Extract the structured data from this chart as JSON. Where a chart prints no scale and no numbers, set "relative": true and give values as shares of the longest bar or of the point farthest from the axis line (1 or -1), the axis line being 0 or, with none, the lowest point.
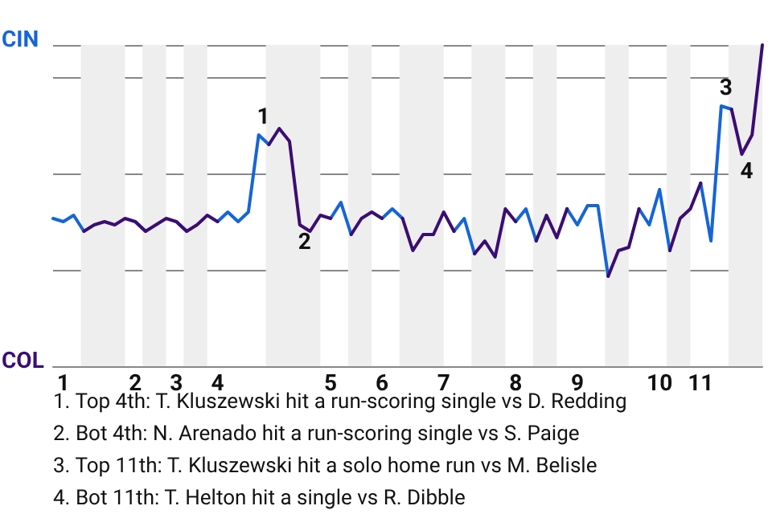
{
  "chart_data": {
    "type": "line",
    "relative": true,
    "categories": [
      null,
      "1",
      null,
      null,
      null,
      null,
      null,
      null,
      "2",
      null,
      null,
      null,
      "3",
      null,
      null,
      null,
      "4",
      null,
      null,
      null,
      null,
      null,
      null,
      null,
      null,
      null,
      null,
      "5",
      null,
      null,
      null,
      null,
      "6",
      null,
      null,
      null,
      null,
      null,
      "7",
      null,
      null,
      null,
      null,
      null,
      null,
      "8",
      null,
      null,
      null,
      null,
      null,
      "9",
      null,
      null,
      null,
      null,
      null,
      null,
      null,
      "10",
      null,
      null,
      null,
      "11",
      null,
      null,
      null,
      null,
      null,
      null
    ],
    "series": [
      {
        "name": "CIN",
        "color": "#1565d8",
        "values": [
          0.46,
          0.45,
          0.47,
          0.42,
          null,
          null,
          null,
          null,
          0.45,
          0.42,
          null,
          null,
          0.45,
          0.42,
          null,
          null,
          0.45,
          0.48,
          0.45,
          0.48,
          0.72,
          0.69,
          null,
          null,
          null,
          null,
          null,
          0.46,
          0.51,
          0.41,
          null,
          null,
          0.46,
          0.49,
          0.46,
          null,
          null,
          null,
          null,
          0.42,
          0.46,
          0.35,
          null,
          null,
          null,
          0.45,
          0.49,
          0.39,
          null,
          null,
          0.49,
          0.44,
          0.5,
          0.5,
          0.28,
          null,
          null,
          0.49,
          0.44,
          0.55,
          0.36,
          null,
          null,
          0.57,
          0.39,
          0.81,
          0.8,
          null,
          null,
          null
        ]
      },
      {
        "name": "COL",
        "color": "#3b0d73",
        "values": [
          null,
          null,
          null,
          0.42,
          0.44,
          0.45,
          0.44,
          0.46,
          0.45,
          0.42,
          0.44,
          0.46,
          0.45,
          0.42,
          0.44,
          0.47,
          0.45,
          null,
          null,
          null,
          null,
          0.69,
          0.74,
          0.7,
          0.44,
          0.42,
          0.47,
          0.46,
          null,
          0.41,
          0.46,
          0.48,
          0.46,
          null,
          0.46,
          0.36,
          0.41,
          0.41,
          0.48,
          0.42,
          null,
          0.35,
          0.39,
          0.34,
          0.49,
          0.45,
          null,
          0.39,
          0.47,
          0.4,
          0.49,
          null,
          null,
          null,
          0.28,
          0.36,
          0.37,
          0.49,
          null,
          null,
          0.36,
          0.46,
          0.49,
          0.57,
          null,
          null,
          0.8,
          0.66,
          0.72,
          1
        ]
      }
    ],
    "grid": "y",
    "marker": "none",
    "line_style": "solid",
    "annotations": [
      {
        "text": "1",
        "y": 0.72
      },
      {
        "text": "2",
        "y": 0.44
      },
      {
        "text": "3",
        "y": 0.81
      },
      {
        "text": "4",
        "y": 0.66
      },
      "1. Top 4th: T. Kluszewski hit a run-scoring single vs D. Redding",
      "2. Bot 4th: N. Arenado hit a run-scoring single vs S. Paige",
      "3. Top 11th: T. Kluszewski hit a solo home run vs M. Belisle",
      "4. Bot 11th: T. Helton hit a single vs R. Dibble"
    ]
  }
}
